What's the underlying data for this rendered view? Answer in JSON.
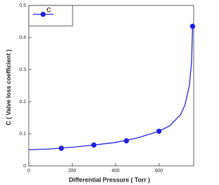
{
  "chart_data": {
    "type": "line",
    "xlabel": "Differential Pressure ( Torr )",
    "ylabel": "C ( Valve loss coefficient )",
    "xlim": [
      0,
      760
    ],
    "xticks": [
      0,
      200,
      400,
      600
    ],
    "ylim": [
      0,
      0.5
    ],
    "yticks": [
      0,
      0.1,
      0.2,
      0.3,
      0.4,
      0.5
    ],
    "legend": "upper-left",
    "series": [
      {
        "name": "C",
        "color": "#1f1fe8",
        "x": [
          150,
          300,
          450,
          600,
          755
        ],
        "values": [
          0.055,
          0.065,
          0.078,
          0.108,
          0.435
        ],
        "curve": {
          "x": [
            0,
            100,
            200,
            300,
            400,
            500,
            600,
            650,
            700,
            720,
            740,
            750,
            755
          ],
          "values": [
            0.05,
            0.053,
            0.058,
            0.065,
            0.073,
            0.087,
            0.108,
            0.125,
            0.16,
            0.19,
            0.25,
            0.32,
            0.435
          ]
        }
      }
    ]
  }
}
